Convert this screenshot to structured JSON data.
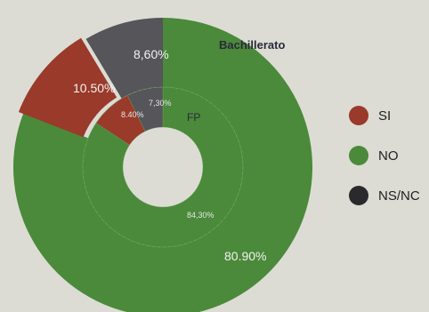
{
  "chart_data": {
    "type": "pie",
    "subtype": "nested-donut",
    "title": "",
    "categories": [
      "SI",
      "NO",
      "NS/NC"
    ],
    "colors": {
      "SI": "#993a2a",
      "NO": "#4a8a3a",
      "NS/NC": "#55555a"
    },
    "rings": [
      {
        "name": "Bachillerato",
        "position": "outer",
        "values": [
          10.5,
          80.9,
          8.6
        ],
        "labels": [
          "10.50%",
          "80.90%",
          "8,60%"
        ]
      },
      {
        "name": "FP",
        "position": "inner",
        "values": [
          8.4,
          84.3,
          7.3
        ],
        "labels": [
          "8.40%",
          "84,30%",
          "7,30%"
        ]
      }
    ],
    "legend": {
      "position": "right",
      "items": [
        {
          "label": "SI",
          "color": "#993a2a"
        },
        {
          "label": "NO",
          "color": "#4a8a3a"
        },
        {
          "label": "NS/NC",
          "color": "#2a2a2c"
        }
      ]
    }
  }
}
